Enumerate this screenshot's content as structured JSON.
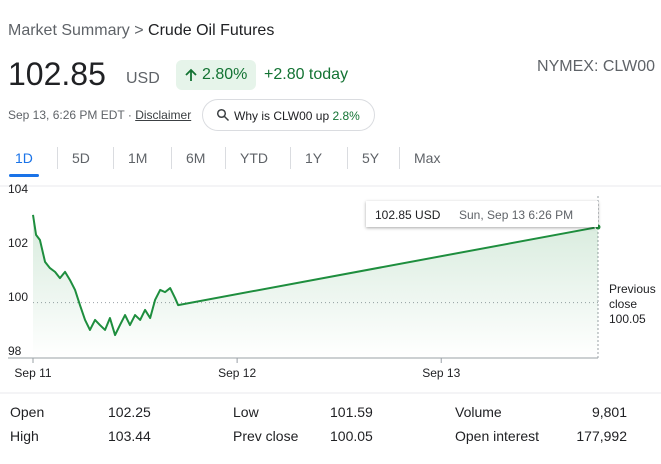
{
  "header": {
    "breadcrumb": [
      "Market Summary",
      "Crude Oil Futures"
    ],
    "separator": ">",
    "price": "102.85",
    "currency": "USD",
    "change_percent": "2.80%",
    "change_today": "+2.80 today",
    "symbol": "NYMEX: CLW00",
    "timestamp": "Sep 13, 6:26 PM EDT ·",
    "disclaimer": "Disclaimer",
    "why_button": {
      "text": "Why is CLW00 up",
      "value": "2.8%"
    }
  },
  "tabs": {
    "items": [
      "1D",
      "5D",
      "1M",
      "6M",
      "YTD",
      "1Y",
      "5Y",
      "Max"
    ],
    "selected": 0
  },
  "chart_data": {
    "type": "line",
    "x": [
      0,
      0.015,
      0.034,
      0.059,
      0.083,
      0.108,
      0.132,
      0.157,
      0.181,
      0.206,
      0.23,
      0.255,
      0.279,
      0.304,
      0.328,
      0.353,
      0.377,
      0.402,
      0.426,
      0.451,
      0.475,
      0.5,
      0.525,
      0.549,
      0.574,
      0.598,
      0.623,
      0.647,
      0.672,
      0.696,
      0.711,
      2.768
    ],
    "series": [
      {
        "name": "CLW00",
        "color": "#1e8e3e",
        "values": [
          103.3,
          102.56,
          102.37,
          101.56,
          101.33,
          101.19,
          100.96,
          101.19,
          100.89,
          100.52,
          99.96,
          99.41,
          99.04,
          99.41,
          99.22,
          99.04,
          99.48,
          98.85,
          99.22,
          99.59,
          99.22,
          99.59,
          99.41,
          99.78,
          99.48,
          100.15,
          100.52,
          100.44,
          100.59,
          100.22,
          99.96,
          102.85
        ]
      }
    ],
    "xlim": [
      0,
      2.768
    ],
    "xticks": [
      {
        "value": 0,
        "label": "Sep 11"
      },
      {
        "value": 1,
        "label": "Sep 12"
      },
      {
        "value": 2,
        "label": "Sep 13"
      }
    ],
    "ylim": [
      98,
      104
    ],
    "yticks": [
      104,
      102,
      100,
      98
    ],
    "grid": false,
    "previous_close": {
      "label": "Previous close",
      "value": 100.05
    },
    "tooltip": {
      "price": "102.85 USD",
      "time": "Sun, Sep 13 6:26 PM"
    }
  },
  "stats": {
    "rows": [
      [
        [
          "Open",
          "102.25"
        ],
        [
          "Low",
          "101.59"
        ],
        [
          "Volume",
          "9,801"
        ]
      ],
      [
        [
          "High",
          "103.44"
        ],
        [
          "Prev close",
          "100.05"
        ],
        [
          "Open interest",
          "177,992"
        ]
      ]
    ]
  }
}
